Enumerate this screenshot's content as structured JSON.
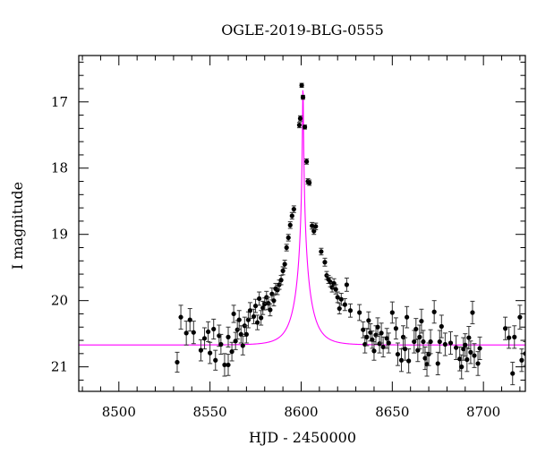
{
  "chart_data": {
    "type": "scatter",
    "title": "OGLE-2019-BLG-0555",
    "xlabel": "HJD - 2450000",
    "ylabel": "I magnitude",
    "xlim": [
      8478,
      8723
    ],
    "ylim": [
      21.37,
      16.3
    ],
    "y_inverted": true,
    "grid": false,
    "x_ticks": [
      "8500",
      "8550",
      "8600",
      "8650",
      "8700"
    ],
    "y_ticks": [
      "17",
      "18",
      "19",
      "20",
      "21"
    ],
    "colors": {
      "points": "#000000",
      "model": "#ff00ff",
      "axes": "#000000"
    },
    "model_label": "",
    "model": {
      "t0": 8601,
      "mag_peak": 16.7,
      "mag_base": 20.67,
      "tE": 9,
      "u0": 0.02
    },
    "series": [
      {
        "points": [
          [
            8532,
            20.93,
            0.15
          ],
          [
            8534,
            20.25,
            0.18
          ],
          [
            8537,
            20.49,
            0.18
          ],
          [
            8539,
            20.29,
            0.17
          ],
          [
            8541,
            20.48,
            0.17
          ],
          [
            8545,
            20.75,
            0.16
          ],
          [
            8547,
            20.57,
            0.16
          ],
          [
            8549,
            20.47,
            0.15
          ],
          [
            8550,
            20.79,
            0.16
          ],
          [
            8552,
            20.43,
            0.15
          ],
          [
            8553,
            20.9,
            0.15
          ],
          [
            8555,
            20.53,
            0.16
          ],
          [
            8556,
            20.66,
            0.15
          ],
          [
            8558,
            20.97,
            0.17
          ],
          [
            8560,
            20.55,
            0.15
          ],
          [
            8560,
            20.97,
            0.16
          ],
          [
            8562,
            20.77,
            0.14
          ],
          [
            8563,
            20.2,
            0.13
          ],
          [
            8564,
            20.61,
            0.13
          ],
          [
            8565,
            20.44,
            0.14
          ],
          [
            8566,
            20.29,
            0.14
          ],
          [
            8567,
            20.51,
            0.13
          ],
          [
            8568,
            20.68,
            0.14
          ],
          [
            8569,
            20.38,
            0.13
          ],
          [
            8570,
            20.51,
            0.13
          ],
          [
            8571,
            20.29,
            0.12
          ],
          [
            8572,
            20.15,
            0.12
          ],
          [
            8574,
            20.24,
            0.11
          ],
          [
            8575,
            20.08,
            0.1
          ],
          [
            8576,
            20.33,
            0.11
          ],
          [
            8577,
            19.97,
            0.1
          ],
          [
            8578,
            20.26,
            0.11
          ],
          [
            8579,
            20.11,
            0.1
          ],
          [
            8580,
            20.05,
            0.09
          ],
          [
            8581,
            19.95,
            0.09
          ],
          [
            8582,
            20.04,
            0.09
          ],
          [
            8583,
            20.14,
            0.09
          ],
          [
            8584,
            19.9,
            0.09
          ],
          [
            8585,
            20.0,
            0.08
          ],
          [
            8586,
            19.82,
            0.08
          ],
          [
            8587,
            19.84,
            0.07
          ],
          [
            8588,
            19.76,
            0.07
          ],
          [
            8589,
            19.69,
            0.07
          ],
          [
            8590,
            19.55,
            0.06
          ],
          [
            8591,
            19.45,
            0.06
          ],
          [
            8592,
            19.2,
            0.05
          ],
          [
            8593,
            19.05,
            0.05
          ],
          [
            8594,
            18.86,
            0.05
          ],
          [
            8595,
            18.72,
            0.05
          ],
          [
            8596,
            18.62,
            0.05
          ],
          [
            8599,
            17.35,
            0.04
          ],
          [
            8599.5,
            17.25,
            0.04
          ],
          [
            8600.3,
            16.75,
            0.03
          ],
          [
            8601,
            16.93,
            0.03
          ],
          [
            8602,
            17.38,
            0.03
          ],
          [
            8603,
            17.9,
            0.04
          ],
          [
            8603.7,
            18.2,
            0.04
          ],
          [
            8604.5,
            18.22,
            0.04
          ],
          [
            8606,
            18.87,
            0.05
          ],
          [
            8607,
            18.95,
            0.05
          ],
          [
            8608,
            18.88,
            0.05
          ],
          [
            8611,
            19.26,
            0.05
          ],
          [
            8613,
            19.42,
            0.06
          ],
          [
            8614,
            19.62,
            0.06
          ],
          [
            8615,
            19.68,
            0.06
          ],
          [
            8616,
            19.72,
            0.07
          ],
          [
            8617,
            19.8,
            0.07
          ],
          [
            8618,
            19.74,
            0.07
          ],
          [
            8619,
            19.83,
            0.07
          ],
          [
            8620,
            19.95,
            0.08
          ],
          [
            8621,
            20.12,
            0.08
          ],
          [
            8622,
            19.98,
            0.09
          ],
          [
            8624,
            20.06,
            0.09
          ],
          [
            8625,
            19.76,
            0.1
          ],
          [
            8627,
            20.15,
            0.1
          ],
          [
            8632,
            20.18,
            0.12
          ],
          [
            8634,
            20.44,
            0.12
          ],
          [
            8635,
            20.66,
            0.13
          ],
          [
            8636,
            20.55,
            0.13
          ],
          [
            8637,
            20.3,
            0.13
          ],
          [
            8638,
            20.48,
            0.13
          ],
          [
            8639,
            20.59,
            0.13
          ],
          [
            8640,
            20.76,
            0.14
          ],
          [
            8641,
            20.52,
            0.14
          ],
          [
            8642,
            20.4,
            0.14
          ],
          [
            8643,
            20.65,
            0.14
          ],
          [
            8644,
            20.49,
            0.15
          ],
          [
            8645,
            20.7,
            0.15
          ],
          [
            8647,
            20.57,
            0.15
          ],
          [
            8648,
            20.64,
            0.15
          ],
          [
            8650,
            20.18,
            0.16
          ],
          [
            8652,
            20.42,
            0.16
          ],
          [
            8653,
            20.81,
            0.17
          ],
          [
            8655,
            20.9,
            0.17
          ],
          [
            8656,
            20.55,
            0.17
          ],
          [
            8657,
            20.73,
            0.17
          ],
          [
            8658,
            20.25,
            0.16
          ],
          [
            8659,
            20.91,
            0.18
          ],
          [
            8662,
            20.62,
            0.17
          ],
          [
            8663,
            20.43,
            0.16
          ],
          [
            8664,
            20.75,
            0.17
          ],
          [
            8665,
            20.55,
            0.18
          ],
          [
            8666,
            20.31,
            0.18
          ],
          [
            8667,
            20.62,
            0.17
          ],
          [
            8668,
            20.87,
            0.17
          ],
          [
            8669,
            20.96,
            0.18
          ],
          [
            8670,
            20.81,
            0.17
          ],
          [
            8671,
            20.62,
            0.18
          ],
          [
            8673,
            20.17,
            0.17
          ],
          [
            8675,
            20.95,
            0.17
          ],
          [
            8676,
            20.62,
            0.17
          ],
          [
            8677,
            20.39,
            0.17
          ],
          [
            8679,
            20.66,
            0.17
          ],
          [
            8682,
            20.64,
            0.17
          ],
          [
            8685,
            20.71,
            0.18
          ],
          [
            8687,
            20.88,
            0.18
          ],
          [
            8688,
            21.0,
            0.18
          ],
          [
            8689,
            20.73,
            0.17
          ],
          [
            8690,
            20.67,
            0.17
          ],
          [
            8691,
            20.89,
            0.18
          ],
          [
            8692,
            20.56,
            0.17
          ],
          [
            8693,
            20.78,
            0.17
          ],
          [
            8694,
            20.18,
            0.17
          ],
          [
            8695,
            20.83,
            0.18
          ],
          [
            8697,
            20.95,
            0.18
          ],
          [
            8698,
            20.72,
            0.17
          ],
          [
            8712,
            20.42,
            0.17
          ],
          [
            8714,
            20.56,
            0.16
          ],
          [
            8716,
            21.1,
            0.17
          ],
          [
            8717,
            20.55,
            0.17
          ],
          [
            8720,
            20.25,
            0.18
          ],
          [
            8721,
            20.9,
            0.17
          ],
          [
            8723,
            20.8,
            0.18
          ]
        ]
      }
    ]
  }
}
